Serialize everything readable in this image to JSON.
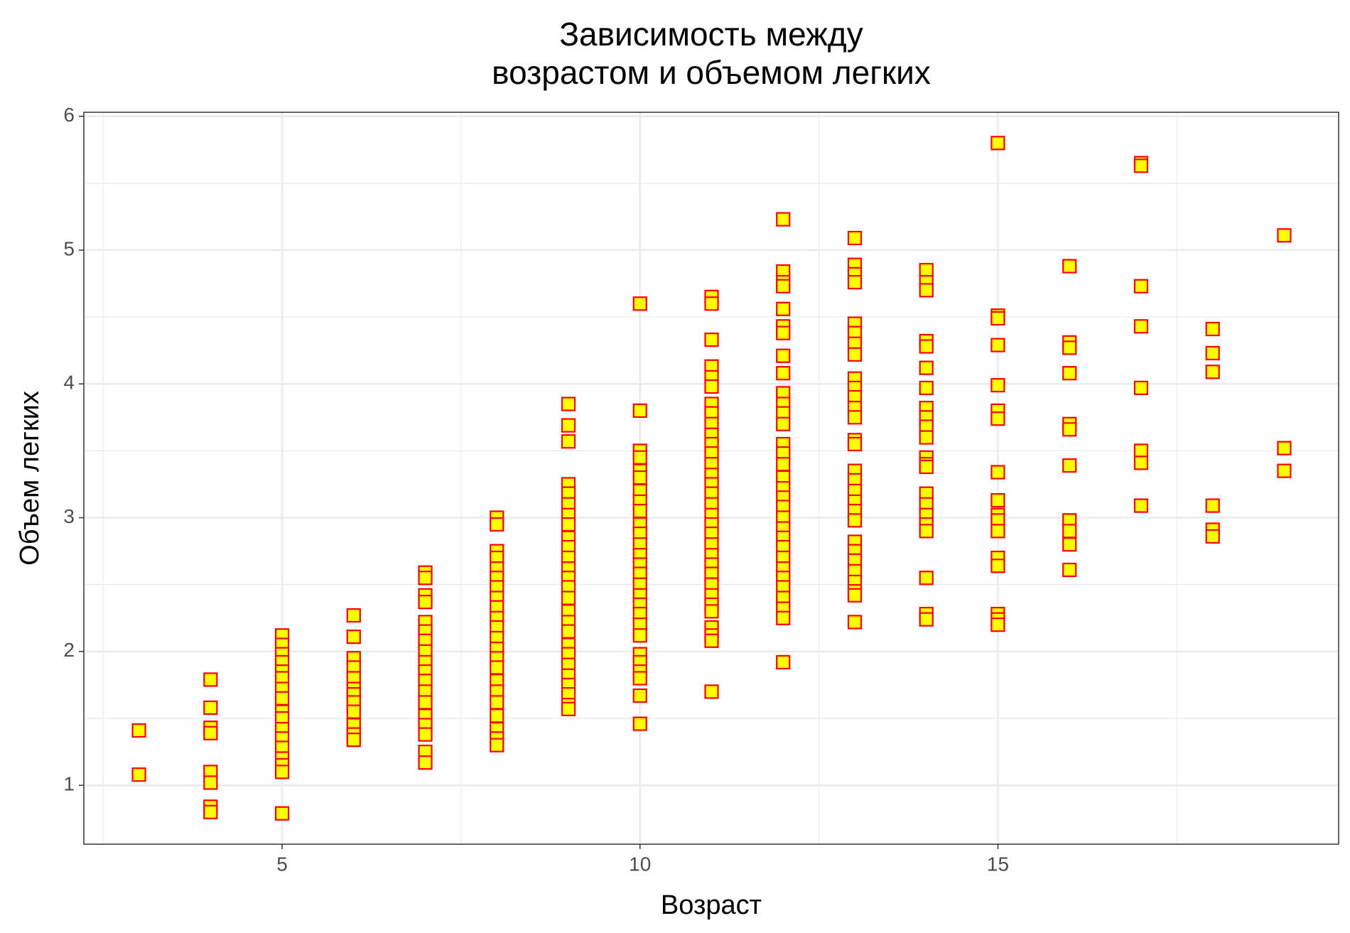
{
  "chart_data": {
    "type": "scatter",
    "title": [
      "Зависимость между",
      "возрастом и объемом легких"
    ],
    "xlabel": "Возраст",
    "ylabel": "Объем легких",
    "color": "#ffff00",
    "edgecolor": "#ff0000",
    "marker": "square",
    "grid": true,
    "xlim": [
      2.23,
      19.76
    ],
    "ylim": [
      0.56,
      6.03
    ],
    "xticks": [
      5,
      10,
      15
    ],
    "yticks": [
      1,
      2,
      3,
      4,
      5,
      6
    ],
    "x_minor_grid": [
      2.5,
      7.5,
      12.5,
      17.5
    ],
    "y_minor_grid": [
      1.5,
      2.5,
      3.5,
      4.5,
      5.5
    ],
    "x": [
      3,
      3,
      4,
      4,
      4,
      4,
      4,
      4,
      4,
      4,
      5,
      5,
      5,
      5,
      5,
      5,
      5,
      5,
      5,
      5,
      5,
      5,
      5,
      5,
      5,
      5,
      5,
      6,
      6,
      6,
      6,
      6,
      6,
      6,
      6,
      6,
      6,
      6,
      6,
      7,
      7,
      7,
      7,
      7,
      7,
      7,
      7,
      7,
      7,
      7,
      7,
      7,
      7,
      7,
      7,
      7,
      7,
      8,
      8,
      8,
      8,
      8,
      8,
      8,
      8,
      8,
      8,
      8,
      8,
      8,
      8,
      8,
      8,
      8,
      8,
      8,
      8,
      8,
      8,
      9,
      9,
      9,
      9,
      9,
      9,
      9,
      9,
      9,
      9,
      9,
      9,
      9,
      9,
      9,
      9,
      9,
      9,
      9,
      9,
      9,
      9,
      9,
      9,
      9,
      9,
      10,
      10,
      10,
      10,
      10,
      10,
      10,
      10,
      10,
      10,
      10,
      10,
      10,
      10,
      10,
      10,
      10,
      10,
      10,
      10,
      10,
      10,
      10,
      10,
      10,
      10,
      10,
      11,
      11,
      11,
      11,
      11,
      11,
      11,
      11,
      11,
      11,
      11,
      11,
      11,
      11,
      11,
      11,
      11,
      11,
      11,
      11,
      11,
      11,
      11,
      11,
      11,
      11,
      11,
      11,
      11,
      11,
      11,
      11,
      12,
      12,
      12,
      12,
      12,
      12,
      12,
      12,
      12,
      12,
      12,
      12,
      12,
      12,
      12,
      12,
      12,
      12,
      12,
      12,
      12,
      12,
      12,
      12,
      12,
      12,
      12,
      12,
      12,
      12,
      12,
      12,
      13,
      13,
      13,
      13,
      13,
      13,
      13,
      13,
      13,
      13,
      13,
      13,
      13,
      13,
      13,
      13,
      13,
      13,
      13,
      13,
      13,
      13,
      13,
      13,
      13,
      13,
      13,
      13,
      13,
      14,
      14,
      14,
      14,
      14,
      14,
      14,
      14,
      14,
      14,
      14,
      14,
      14,
      14,
      14,
      14,
      14,
      14,
      14,
      14,
      14,
      14,
      15,
      15,
      15,
      15,
      15,
      15,
      15,
      15,
      15,
      15,
      15,
      15,
      15,
      15,
      15,
      15,
      15,
      16,
      16,
      16,
      16,
      16,
      16,
      16,
      16,
      16,
      16,
      16,
      17,
      17,
      17,
      17,
      17,
      17,
      17,
      17,
      18,
      18,
      18,
      18,
      18,
      18,
      19,
      19,
      19
    ],
    "values": [
      1.41,
      1.08,
      1.79,
      1.58,
      1.43,
      1.39,
      1.1,
      1.02,
      0.84,
      0.8,
      2.12,
      2.05,
      1.98,
      1.92,
      1.85,
      1.8,
      1.72,
      1.65,
      1.55,
      1.5,
      1.42,
      1.35,
      1.28,
      1.2,
      1.15,
      1.1,
      0.79,
      2.27,
      2.11,
      1.95,
      1.88,
      1.8,
      1.72,
      1.68,
      1.62,
      1.55,
      1.45,
      1.38,
      1.34,
      2.59,
      2.55,
      2.42,
      2.37,
      2.22,
      2.15,
      2.08,
      2.0,
      1.92,
      1.85,
      1.78,
      1.7,
      1.62,
      1.52,
      1.45,
      1.38,
      1.25,
      1.17,
      3.0,
      2.95,
      2.75,
      2.7,
      2.62,
      2.55,
      2.48,
      2.4,
      2.33,
      2.25,
      2.18,
      2.1,
      2.02,
      1.95,
      1.88,
      1.78,
      1.7,
      1.62,
      1.52,
      1.42,
      1.35,
      1.3,
      3.85,
      3.69,
      3.57,
      3.25,
      3.18,
      3.1,
      3.02,
      2.95,
      2.85,
      2.78,
      2.7,
      2.62,
      2.55,
      2.48,
      2.4,
      2.3,
      2.22,
      2.15,
      2.05,
      1.98,
      1.9,
      1.82,
      1.75,
      1.68,
      1.6,
      1.57,
      4.6,
      3.8,
      3.5,
      3.45,
      3.35,
      3.3,
      3.2,
      3.12,
      3.05,
      2.95,
      2.88,
      2.8,
      2.72,
      2.65,
      2.58,
      2.5,
      2.42,
      2.35,
      2.28,
      2.2,
      2.12,
      1.98,
      1.92,
      1.85,
      1.8,
      1.67,
      1.46,
      4.65,
      4.6,
      4.33,
      4.13,
      4.05,
      3.98,
      3.85,
      3.78,
      3.7,
      3.62,
      3.55,
      3.48,
      3.4,
      3.32,
      3.25,
      3.18,
      3.1,
      3.02,
      2.95,
      2.88,
      2.8,
      2.72,
      2.65,
      2.58,
      2.5,
      2.42,
      2.35,
      2.3,
      2.18,
      2.12,
      2.08,
      1.7,
      5.23,
      4.84,
      4.76,
      4.73,
      4.56,
      4.43,
      4.38,
      4.21,
      4.08,
      3.93,
      3.85,
      3.78,
      3.7,
      3.55,
      3.48,
      3.4,
      3.3,
      3.22,
      3.15,
      3.08,
      3.0,
      2.92,
      2.85,
      2.78,
      2.7,
      2.62,
      2.55,
      2.48,
      2.4,
      2.32,
      2.25,
      1.92,
      5.09,
      4.89,
      4.82,
      4.76,
      4.45,
      4.38,
      4.3,
      4.22,
      4.04,
      3.97,
      3.9,
      3.82,
      3.75,
      3.58,
      3.55,
      3.35,
      3.28,
      3.2,
      3.12,
      3.05,
      2.98,
      2.82,
      2.75,
      2.68,
      2.6,
      2.52,
      2.45,
      2.42,
      2.22,
      4.85,
      4.76,
      4.7,
      4.32,
      4.28,
      4.12,
      3.97,
      3.82,
      3.75,
      3.68,
      3.6,
      3.45,
      3.4,
      3.38,
      3.18,
      3.1,
      3.02,
      2.95,
      2.9,
      2.55,
      2.28,
      2.24,
      5.8,
      4.51,
      4.49,
      4.29,
      3.99,
      3.8,
      3.74,
      3.34,
      3.13,
      3.02,
      2.98,
      2.9,
      2.7,
      2.64,
      2.28,
      2.24,
      2.2,
      4.88,
      4.31,
      4.27,
      4.08,
      3.7,
      3.66,
      3.39,
      2.98,
      2.9,
      2.8,
      2.61,
      5.65,
      5.63,
      4.73,
      4.43,
      3.97,
      3.5,
      3.41,
      3.09,
      4.41,
      4.23,
      4.09,
      3.09,
      2.91,
      2.86,
      5.11,
      3.52,
      3.35
    ]
  }
}
